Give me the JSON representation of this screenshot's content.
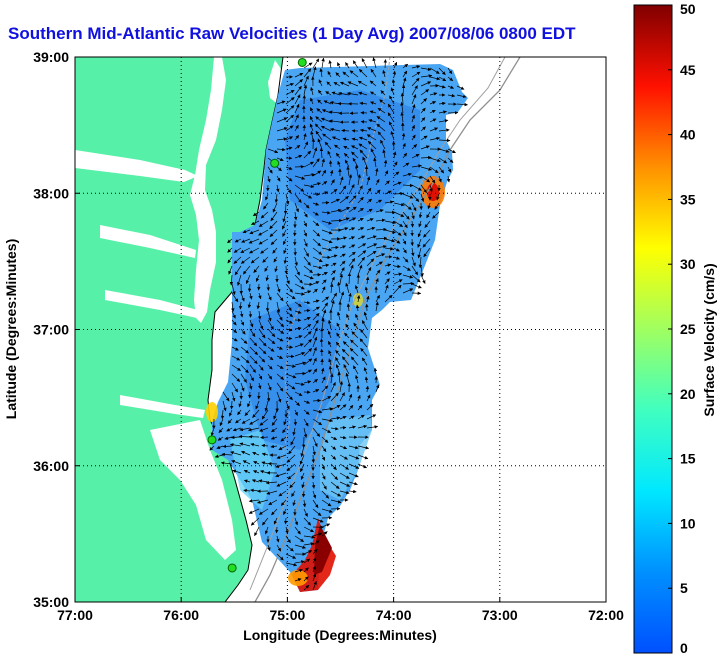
{
  "chart_data": {
    "type": "heatmap",
    "title": "Southern Mid-Atlantic Raw Velocities (1 Day Avg) 2007/08/06 0800 EDT",
    "xlabel": "Longitude (Degrees:Minutes)",
    "ylabel": "Latitude (Degrees:Minutes)",
    "colorbar_label": "Surface Velocity (cm/s)",
    "xlim": [
      -77,
      -72
    ],
    "ylim": [
      35,
      39
    ],
    "x_ticks": [
      {
        "value": -77,
        "label": "77:00"
      },
      {
        "value": -76,
        "label": "76:00"
      },
      {
        "value": -75,
        "label": "75:00"
      },
      {
        "value": -74,
        "label": "74:00"
      },
      {
        "value": -73,
        "label": "73:00"
      },
      {
        "value": -72,
        "label": "72:00"
      }
    ],
    "y_ticks": [
      {
        "value": 35,
        "label": "35:00"
      },
      {
        "value": 36,
        "label": "36:00"
      },
      {
        "value": 37,
        "label": "37:00"
      },
      {
        "value": 38,
        "label": "38:00"
      },
      {
        "value": 39,
        "label": "39:00"
      }
    ],
    "colorbar": {
      "range": [
        0,
        50
      ],
      "ticks": [
        0,
        5,
        10,
        15,
        20,
        25,
        30,
        35,
        40,
        45,
        50
      ]
    },
    "grid": true,
    "radar_sites": [
      {
        "lon": -74.86,
        "lat": 38.96
      },
      {
        "lon": -75.12,
        "lat": 38.22
      },
      {
        "lon": -75.71,
        "lat": 36.19
      },
      {
        "lon": -75.52,
        "lat": 35.25
      }
    ],
    "hotspots": [
      {
        "lon": -73.6,
        "lat": 38.0,
        "speed": 42
      },
      {
        "lon": -74.7,
        "lat": 35.25,
        "speed": 50
      },
      {
        "lon": -74.8,
        "lat": 35.15,
        "speed": 35
      },
      {
        "lon": -75.7,
        "lat": 36.4,
        "speed": 27
      }
    ]
  },
  "colors": {
    "land": "#57f0a8",
    "title": "#1010e0",
    "site_marker": "#22dd22"
  }
}
